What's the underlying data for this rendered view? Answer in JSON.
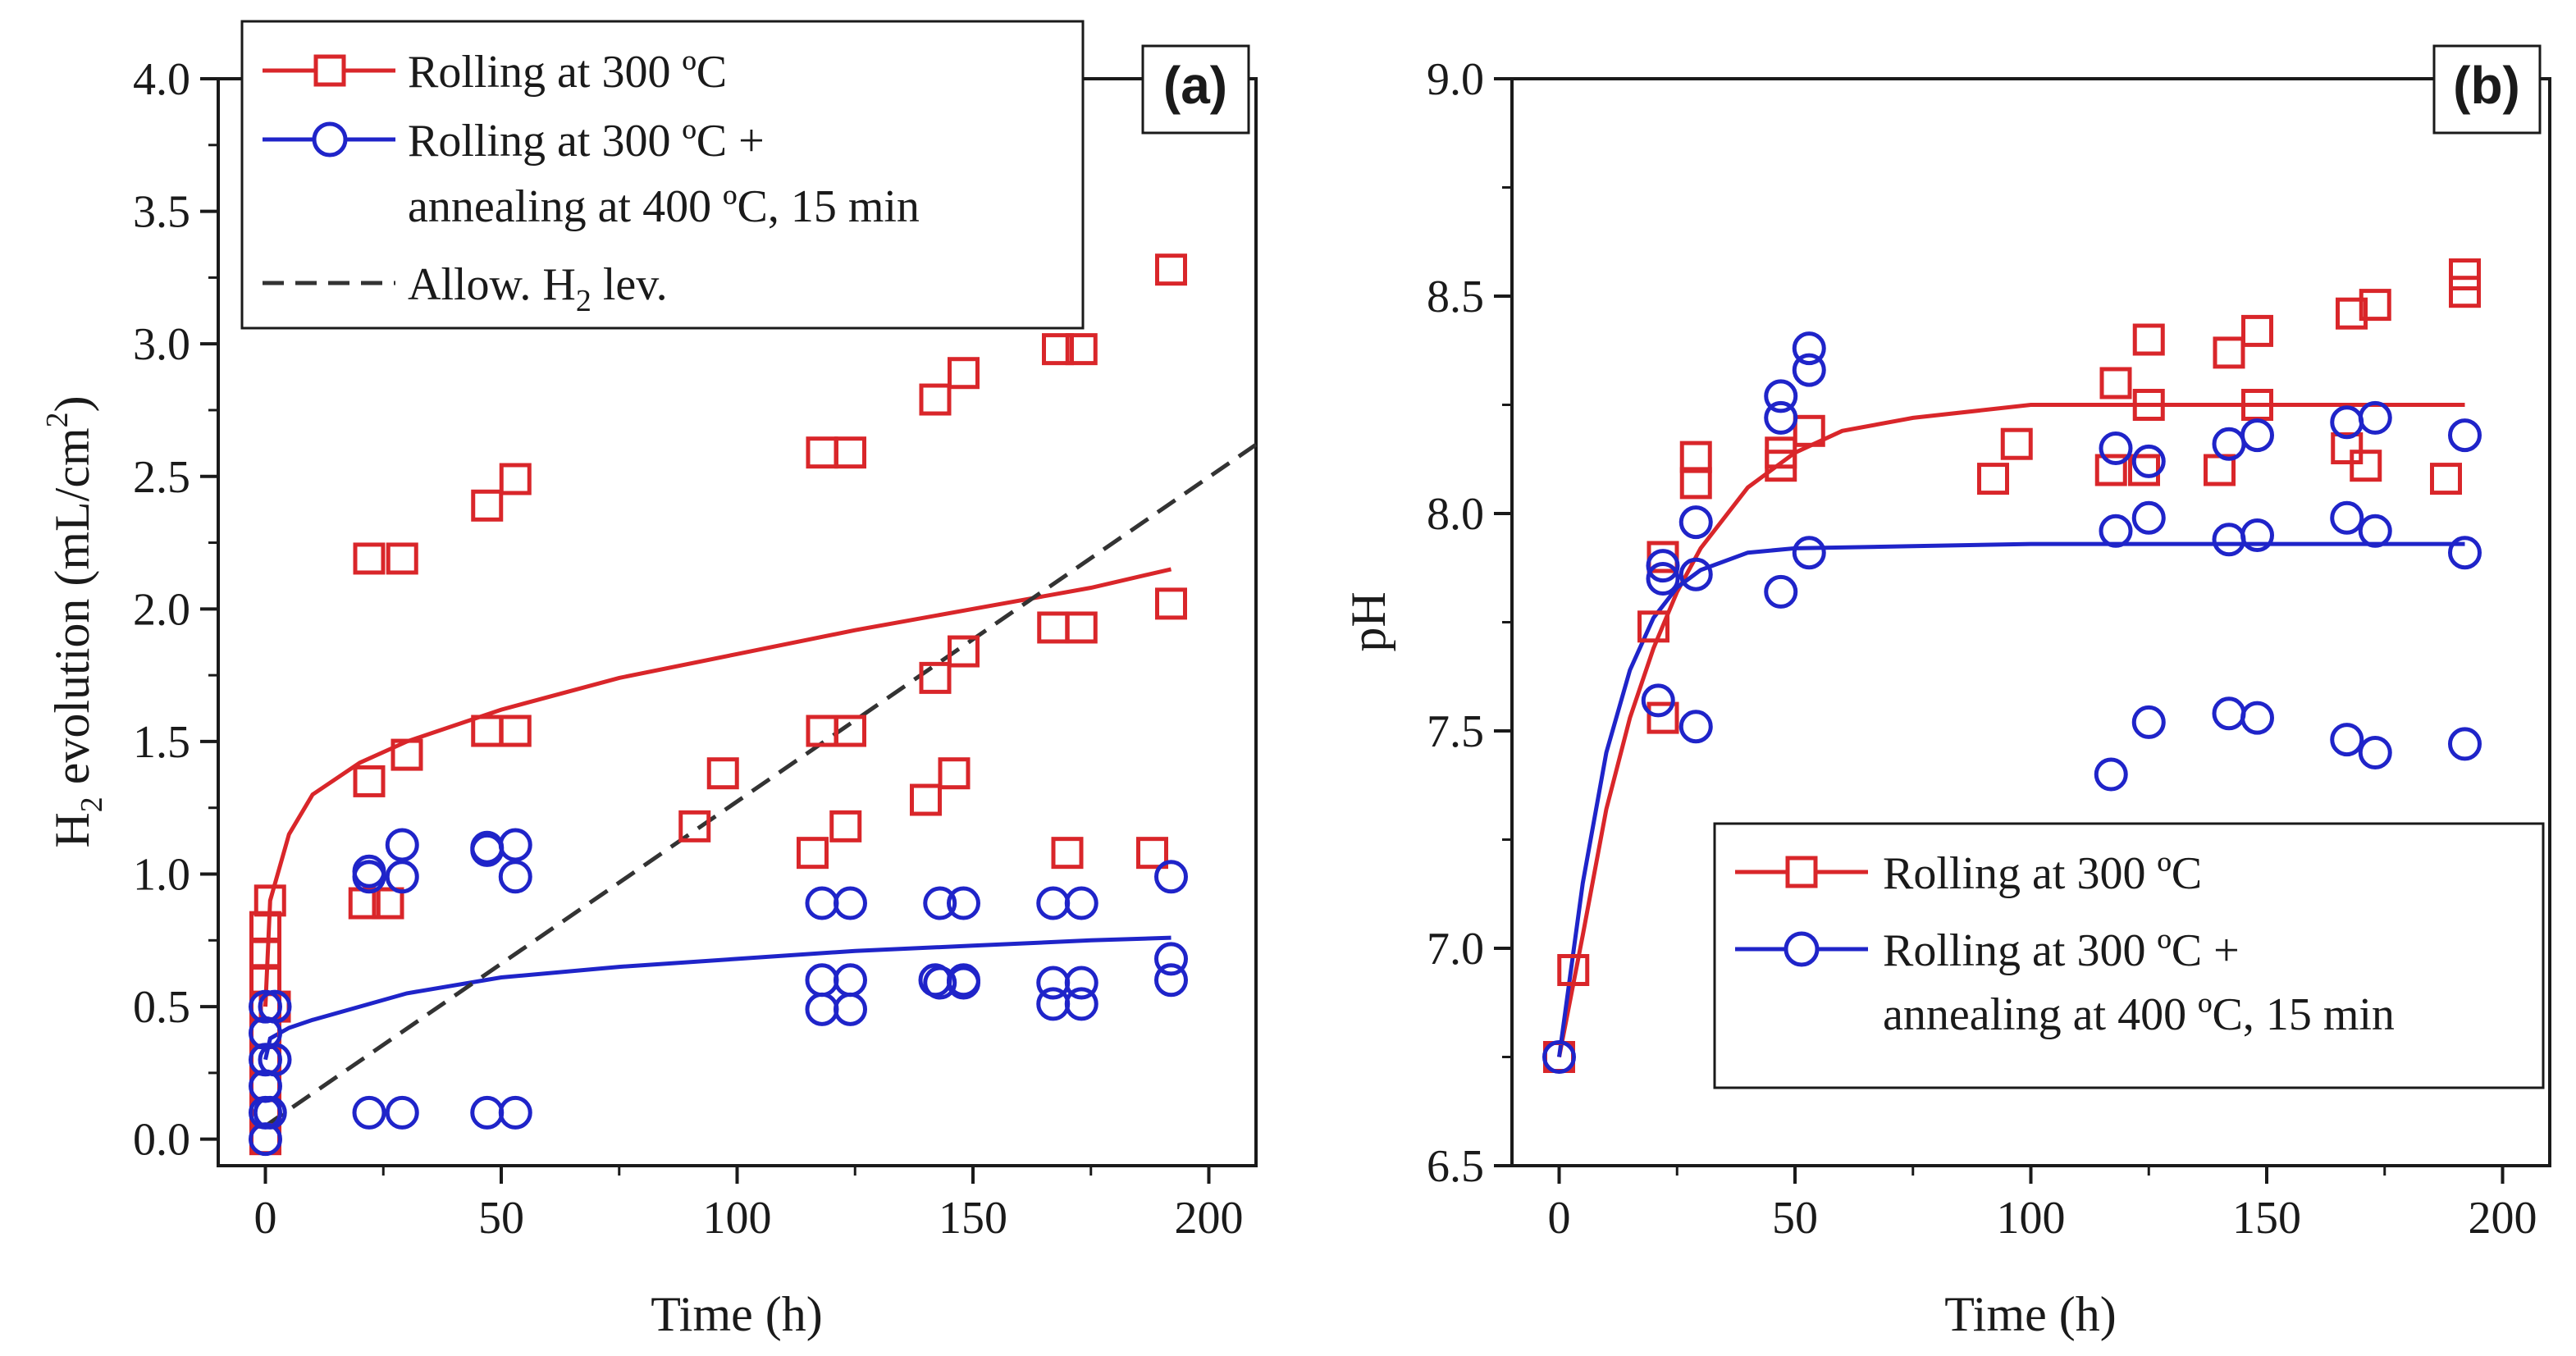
{
  "colors": {
    "series_a": "#d9262a",
    "series_b": "#1f24c9",
    "allowable": "#333333",
    "axis": "#1a1a1a"
  },
  "chart_data": [
    {
      "type": "scatter",
      "panel_label": "(a)",
      "xlabel": "Time (h)",
      "ylabel_parts": [
        "H",
        "2",
        " evolution (mL/cm",
        "2",
        ")"
      ],
      "xlim": [
        -10,
        210
      ],
      "ylim": [
        -0.1,
        4.0
      ],
      "xticks": [
        0,
        50,
        100,
        150,
        200
      ],
      "yticks": [
        0.0,
        0.5,
        1.0,
        1.5,
        2.0,
        2.5,
        3.0,
        3.5,
        4.0
      ],
      "ytick_labels": [
        "0.0",
        "0.5",
        "1.0",
        "1.5",
        "2.0",
        "2.5",
        "3.0",
        "3.5",
        "4.0"
      ],
      "legend": {
        "placement": "top-left",
        "entries": [
          {
            "series": "rolling",
            "lines": [
              "Rolling at 300 ºC"
            ]
          },
          {
            "series": "annealed",
            "lines": [
              "Rolling at 300 ºC +",
              "annealing at 400 ºC, 15 min"
            ]
          },
          {
            "series": "allowable",
            "parts": [
              "Allow. H",
              "2",
              " lev."
            ]
          }
        ]
      },
      "series": [
        {
          "name": "Rolling at 300 ºC",
          "key": "rolling",
          "marker": "square",
          "points": [
            [
              0,
              0
            ],
            [
              0,
              0.1
            ],
            [
              0,
              0.2
            ],
            [
              0,
              0.3
            ],
            [
              0,
              0.4
            ],
            [
              0,
              0.5
            ],
            [
              0,
              0.6
            ],
            [
              0,
              0.7
            ],
            [
              0,
              0.8
            ],
            [
              1,
              0.9
            ],
            [
              2,
              0.5
            ],
            [
              21,
              0.89
            ],
            [
              26,
              0.89
            ],
            [
              22,
              1.35
            ],
            [
              30,
              1.45
            ],
            [
              22,
              2.19
            ],
            [
              29,
              2.19
            ],
            [
              47,
              1.54
            ],
            [
              53,
              1.54
            ],
            [
              47,
              2.39
            ],
            [
              53,
              2.49
            ],
            [
              91,
              1.18
            ],
            [
              97,
              1.38
            ],
            [
              116,
              1.08
            ],
            [
              118,
              1.54
            ],
            [
              118,
              2.59
            ],
            [
              124,
              2.59
            ],
            [
              124,
              1.54
            ],
            [
              123,
              1.18
            ],
            [
              140,
              1.28
            ],
            [
              142,
              1.74
            ],
            [
              146,
              1.38
            ],
            [
              148,
              1.84
            ],
            [
              142,
              2.79
            ],
            [
              148,
              2.89
            ],
            [
              167,
              1.93
            ],
            [
              173,
              1.93
            ],
            [
              168,
              2.98
            ],
            [
              173,
              2.98
            ],
            [
              170,
              1.08
            ],
            [
              188,
              1.08
            ],
            [
              192,
              2.02
            ],
            [
              192,
              3.28
            ]
          ]
        },
        {
          "name": "Rolling at 300 ºC + annealing at 400 ºC, 15 min",
          "key": "annealed",
          "marker": "circle",
          "points": [
            [
              0,
              0
            ],
            [
              0,
              0.1
            ],
            [
              0,
              0.2
            ],
            [
              0,
              0.3
            ],
            [
              0,
              0.4
            ],
            [
              0,
              0.5
            ],
            [
              1,
              0.1
            ],
            [
              2,
              0.3
            ],
            [
              2,
              0.5
            ],
            [
              22,
              0.1
            ],
            [
              29,
              0.1
            ],
            [
              22,
              0.99
            ],
            [
              22,
              1.01
            ],
            [
              29,
              0.99
            ],
            [
              29,
              1.11
            ],
            [
              47,
              0.1
            ],
            [
              53,
              0.1
            ],
            [
              47,
              1.1
            ],
            [
              47,
              1.09
            ],
            [
              53,
              1.11
            ],
            [
              53,
              0.99
            ],
            [
              118,
              0.49
            ],
            [
              118,
              0.6
            ],
            [
              118,
              0.89
            ],
            [
              124,
              0.49
            ],
            [
              124,
              0.6
            ],
            [
              124,
              0.89
            ],
            [
              142,
              0.6
            ],
            [
              143,
              0.59
            ],
            [
              143,
              0.89
            ],
            [
              148,
              0.6
            ],
            [
              148,
              0.59
            ],
            [
              148,
              0.89
            ],
            [
              167,
              0.51
            ],
            [
              167,
              0.59
            ],
            [
              167,
              0.89
            ],
            [
              173,
              0.51
            ],
            [
              173,
              0.59
            ],
            [
              173,
              0.89
            ],
            [
              192,
              0.6
            ],
            [
              192,
              0.68
            ],
            [
              192,
              0.99
            ]
          ]
        },
        {
          "name": "Rolling at 300 ºC fit",
          "key": "rolling",
          "type": "line",
          "points": [
            [
              0,
              0.5
            ],
            [
              1,
              0.9
            ],
            [
              5,
              1.15
            ],
            [
              10,
              1.3
            ],
            [
              20,
              1.42
            ],
            [
              30,
              1.5
            ],
            [
              50,
              1.62
            ],
            [
              75,
              1.74
            ],
            [
              100,
              1.83
            ],
            [
              125,
              1.92
            ],
            [
              150,
              2.0
            ],
            [
              175,
              2.08
            ],
            [
              192,
              2.15
            ]
          ]
        },
        {
          "name": "Rolling at 300 ºC + annealing fit",
          "key": "annealed",
          "type": "line",
          "points": [
            [
              0,
              0.3
            ],
            [
              1,
              0.38
            ],
            [
              5,
              0.42
            ],
            [
              10,
              0.45
            ],
            [
              20,
              0.5
            ],
            [
              30,
              0.55
            ],
            [
              50,
              0.61
            ],
            [
              75,
              0.65
            ],
            [
              100,
              0.68
            ],
            [
              125,
              0.71
            ],
            [
              150,
              0.73
            ],
            [
              175,
              0.75
            ],
            [
              192,
              0.76
            ]
          ]
        },
        {
          "name": "Allow. H2 lev.",
          "key": "allowable",
          "type": "dashed-line",
          "points": [
            [
              0,
              0.05
            ],
            [
              210,
              2.62
            ]
          ]
        }
      ]
    },
    {
      "type": "scatter",
      "panel_label": "(b)",
      "xlabel": "Time (h)",
      "ylabel": "pH",
      "xlim": [
        -10,
        210
      ],
      "ylim": [
        6.5,
        9.0
      ],
      "xticks": [
        0,
        50,
        100,
        150,
        200
      ],
      "yticks": [
        6.5,
        7.0,
        7.5,
        8.0,
        8.5,
        9.0
      ],
      "ytick_labels": [
        "6.5",
        "7.0",
        "7.5",
        "8.0",
        "8.5",
        "9.0"
      ],
      "legend": {
        "placement": "bottom-right",
        "entries": [
          {
            "series": "rolling",
            "lines": [
              "Rolling at 300 ºC"
            ]
          },
          {
            "series": "annealed",
            "lines": [
              "Rolling at 300 ºC +",
              "annealing at 400 ºC, 15 min"
            ]
          }
        ]
      },
      "series": [
        {
          "name": "Rolling at 300 ºC",
          "key": "rolling",
          "marker": "square",
          "points": [
            [
              0,
              6.75
            ],
            [
              3,
              6.95
            ],
            [
              20,
              7.74
            ],
            [
              22,
              7.53
            ],
            [
              22,
              7.9
            ],
            [
              29,
              8.07
            ],
            [
              29,
              8.13
            ],
            [
              47,
              8.11
            ],
            [
              47,
              8.14
            ],
            [
              53,
              8.19
            ],
            [
              92,
              8.08
            ],
            [
              97,
              8.16
            ],
            [
              117,
              8.1
            ],
            [
              118,
              8.3
            ],
            [
              124,
              8.1
            ],
            [
              125,
              8.25
            ],
            [
              125,
              8.4
            ],
            [
              140,
              8.1
            ],
            [
              142,
              8.37
            ],
            [
              148,
              8.25
            ],
            [
              148,
              8.42
            ],
            [
              167,
              8.15
            ],
            [
              168,
              8.46
            ],
            [
              171,
              8.11
            ],
            [
              173,
              8.48
            ],
            [
              188,
              8.08
            ],
            [
              192,
              8.51
            ],
            [
              192,
              8.55
            ]
          ]
        },
        {
          "name": "Rolling at 300 ºC + annealing at 400 ºC, 15 min",
          "key": "annealed",
          "marker": "circle",
          "points": [
            [
              0,
              6.75
            ],
            [
              21,
              7.57
            ],
            [
              22,
              7.85
            ],
            [
              22,
              7.88
            ],
            [
              29,
              7.51
            ],
            [
              29,
              7.86
            ],
            [
              29,
              7.98
            ],
            [
              47,
              7.82
            ],
            [
              47,
              8.22
            ],
            [
              47,
              8.27
            ],
            [
              53,
              7.91
            ],
            [
              53,
              8.33
            ],
            [
              53,
              8.38
            ],
            [
              117,
              7.4
            ],
            [
              118,
              7.96
            ],
            [
              118,
              8.15
            ],
            [
              125,
              7.52
            ],
            [
              125,
              7.99
            ],
            [
              125,
              8.12
            ],
            [
              142,
              7.54
            ],
            [
              142,
              7.94
            ],
            [
              142,
              8.16
            ],
            [
              148,
              7.53
            ],
            [
              148,
              7.95
            ],
            [
              148,
              8.18
            ],
            [
              167,
              7.48
            ],
            [
              167,
              7.99
            ],
            [
              167,
              8.21
            ],
            [
              173,
              7.45
            ],
            [
              173,
              7.96
            ],
            [
              173,
              8.22
            ],
            [
              192,
              7.47
            ],
            [
              192,
              7.91
            ],
            [
              192,
              8.18
            ]
          ]
        },
        {
          "name": "Rolling at 300 ºC fit",
          "key": "rolling",
          "type": "line",
          "points": [
            [
              0,
              6.75
            ],
            [
              5,
              7.03
            ],
            [
              10,
              7.32
            ],
            [
              15,
              7.53
            ],
            [
              20,
              7.69
            ],
            [
              25,
              7.82
            ],
            [
              30,
              7.92
            ],
            [
              40,
              8.06
            ],
            [
              50,
              8.14
            ],
            [
              60,
              8.19
            ],
            [
              75,
              8.22
            ],
            [
              100,
              8.25
            ],
            [
              150,
              8.25
            ],
            [
              192,
              8.25
            ]
          ]
        },
        {
          "name": "Rolling at 300 ºC + annealing fit",
          "key": "annealed",
          "type": "line",
          "points": [
            [
              0,
              6.75
            ],
            [
              5,
              7.15
            ],
            [
              10,
              7.45
            ],
            [
              15,
              7.64
            ],
            [
              20,
              7.76
            ],
            [
              25,
              7.83
            ],
            [
              30,
              7.87
            ],
            [
              40,
              7.91
            ],
            [
              50,
              7.92
            ],
            [
              75,
              7.925
            ],
            [
              100,
              7.93
            ],
            [
              150,
              7.93
            ],
            [
              192,
              7.93
            ]
          ]
        }
      ]
    }
  ]
}
